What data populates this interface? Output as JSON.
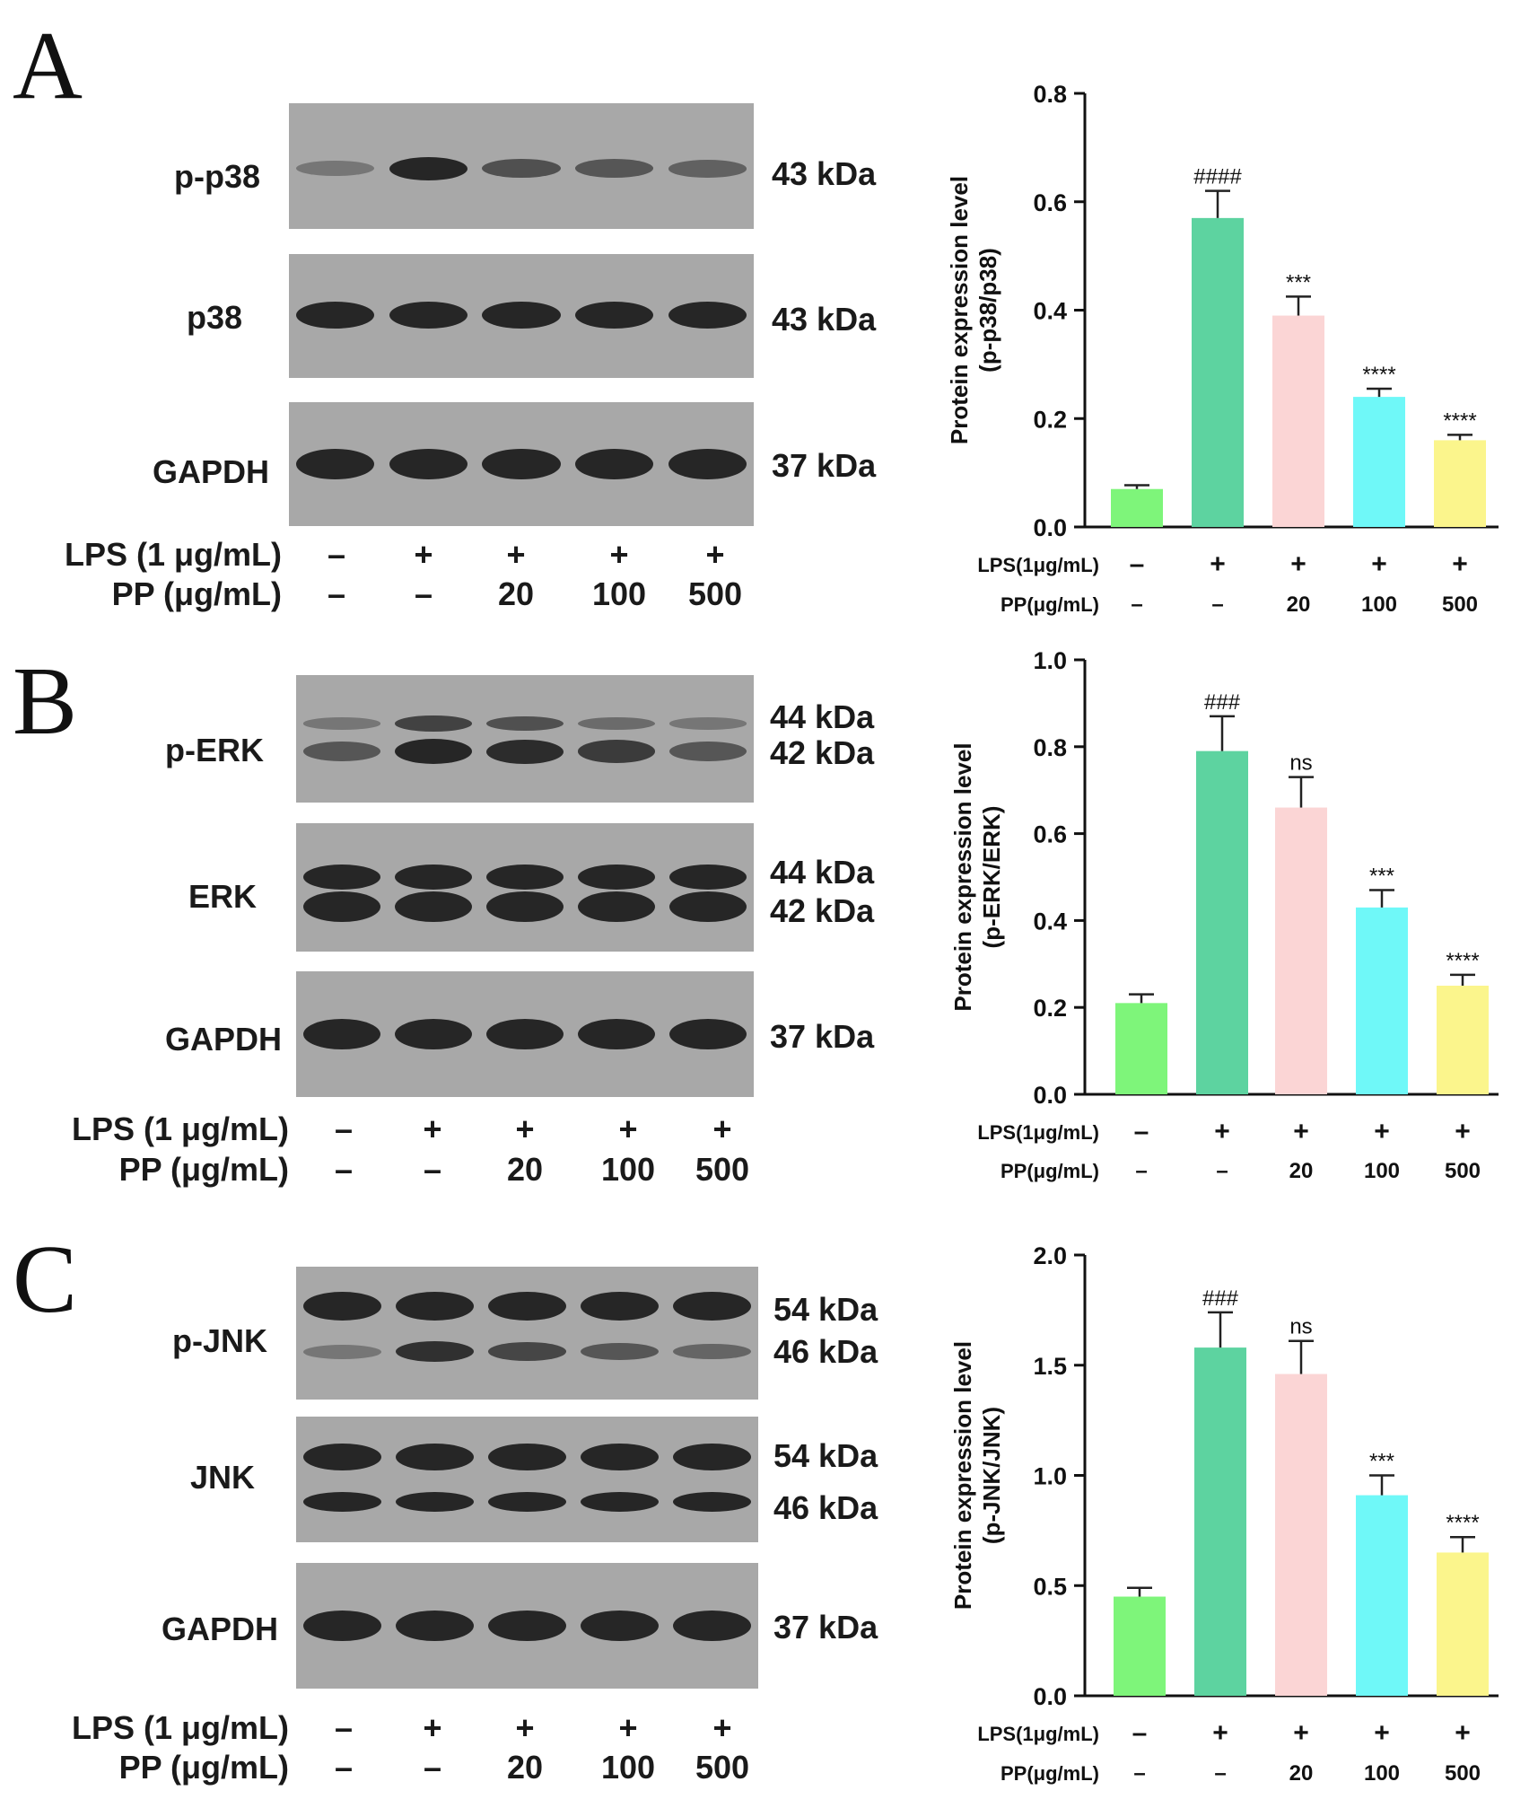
{
  "panels": [
    {
      "letter": "A",
      "blots": [
        {
          "label": "p-p38",
          "kda": [
            "43 kDa"
          ]
        },
        {
          "label": "p38",
          "kda": [
            "43 kDa"
          ]
        },
        {
          "label": "GAPDH",
          "kda": [
            "37 kDa"
          ]
        }
      ],
      "conditions": {
        "lps_label": "LPS (1 μg/mL)",
        "pp_label": "PP (μg/mL)",
        "lps": [
          "–",
          "+",
          "+",
          "+",
          "+"
        ],
        "pp": [
          "–",
          "–",
          "20",
          "100",
          "500"
        ]
      }
    },
    {
      "letter": "B",
      "blots": [
        {
          "label": "p-ERK",
          "kda": [
            "44 kDa",
            "42 kDa"
          ]
        },
        {
          "label": "ERK",
          "kda": [
            "44 kDa",
            "42 kDa"
          ]
        },
        {
          "label": "GAPDH",
          "kda": [
            "37 kDa"
          ]
        }
      ],
      "conditions": {
        "lps_label": "LPS (1 μg/mL)",
        "pp_label": "PP (μg/mL)",
        "lps": [
          "–",
          "+",
          "+",
          "+",
          "+"
        ],
        "pp": [
          "–",
          "–",
          "20",
          "100",
          "500"
        ]
      }
    },
    {
      "letter": "C",
      "blots": [
        {
          "label": "p-JNK",
          "kda": [
            "54 kDa",
            "46 kDa"
          ]
        },
        {
          "label": "JNK",
          "kda": [
            "54 kDa",
            "46 kDa"
          ]
        },
        {
          "label": "GAPDH",
          "kda": [
            "37 kDa"
          ]
        }
      ],
      "conditions": {
        "lps_label": "LPS (1 μg/mL)",
        "pp_label": "PP (μg/mL)",
        "lps": [
          "–",
          "+",
          "+",
          "+",
          "+"
        ],
        "pp": [
          "–",
          "–",
          "20",
          "100",
          "500"
        ]
      }
    }
  ],
  "band_intensity": {
    "p-p38": [
      0.25,
      1.0,
      0.6,
      0.55,
      0.45
    ],
    "p-ERK_upper": [
      0.25,
      0.75,
      0.6,
      0.35,
      0.25
    ],
    "p-ERK_lower": [
      0.55,
      1.0,
      0.95,
      0.8,
      0.55
    ],
    "p-JNK_lower": [
      0.25,
      0.9,
      0.7,
      0.55,
      0.4
    ]
  },
  "chart_data": [
    {
      "type": "bar",
      "ylabel": "Protein expression level",
      "ylabel2": "(p-p38/p38)",
      "ylim": [
        0,
        0.8
      ],
      "yticks": [
        0.0,
        0.2,
        0.4,
        0.6,
        0.8
      ],
      "ytick_labels": [
        "0.0",
        "0.2",
        "0.4",
        "0.6",
        "0.8"
      ],
      "values": [
        0.07,
        0.57,
        0.39,
        0.24,
        0.16
      ],
      "errors": [
        0.007,
        0.05,
        0.035,
        0.015,
        0.01
      ],
      "significance": [
        "",
        "####",
        "***",
        "****",
        "****"
      ],
      "bar_colors": [
        "#7ef57a",
        "#5dd3a0",
        "#fbd5d5",
        "#6ff8f8",
        "#fbf58c"
      ],
      "row_labels": [
        "LPS(1μg/mL)",
        "PP(μg/mL)"
      ],
      "lps": [
        "–",
        "+",
        "+",
        "+",
        "+"
      ],
      "pp": [
        "–",
        "–",
        "20",
        "100",
        "500"
      ]
    },
    {
      "type": "bar",
      "ylabel": "Protein expression level",
      "ylabel2": "(p-ERK/ERK)",
      "ylim": [
        0,
        1.0
      ],
      "yticks": [
        0.0,
        0.2,
        0.4,
        0.6,
        0.8,
        1.0
      ],
      "ytick_labels": [
        "0.0",
        "0.2",
        "0.4",
        "0.6",
        "0.8",
        "1.0"
      ],
      "values": [
        0.21,
        0.79,
        0.66,
        0.43,
        0.25
      ],
      "errors": [
        0.02,
        0.08,
        0.07,
        0.04,
        0.025
      ],
      "significance": [
        "",
        "###",
        "ns",
        "***",
        "****"
      ],
      "bar_colors": [
        "#7ef57a",
        "#5dd3a0",
        "#fbd5d5",
        "#6ff8f8",
        "#fbf58c"
      ],
      "row_labels": [
        "LPS(1μg/mL)",
        "PP(μg/mL)"
      ],
      "lps": [
        "–",
        "+",
        "+",
        "+",
        "+"
      ],
      "pp": [
        "–",
        "–",
        "20",
        "100",
        "500"
      ]
    },
    {
      "type": "bar",
      "ylabel": "Protein expression level",
      "ylabel2": "(p-JNK/JNK)",
      "ylim": [
        0,
        2.0
      ],
      "yticks": [
        0.0,
        0.5,
        1.0,
        1.5,
        2.0
      ],
      "ytick_labels": [
        "0.0",
        "0.5",
        "1.0",
        "1.5",
        "2.0"
      ],
      "values": [
        0.45,
        1.58,
        1.46,
        0.91,
        0.65
      ],
      "errors": [
        0.04,
        0.16,
        0.15,
        0.09,
        0.07
      ],
      "significance": [
        "",
        "###",
        "ns",
        "***",
        "****"
      ],
      "bar_colors": [
        "#7ef57a",
        "#5dd3a0",
        "#fbd5d5",
        "#6ff8f8",
        "#fbf58c"
      ],
      "row_labels": [
        "LPS(1μg/mL)",
        "PP(μg/mL)"
      ],
      "lps": [
        "–",
        "+",
        "+",
        "+",
        "+"
      ],
      "pp": [
        "–",
        "–",
        "20",
        "100",
        "500"
      ]
    }
  ]
}
